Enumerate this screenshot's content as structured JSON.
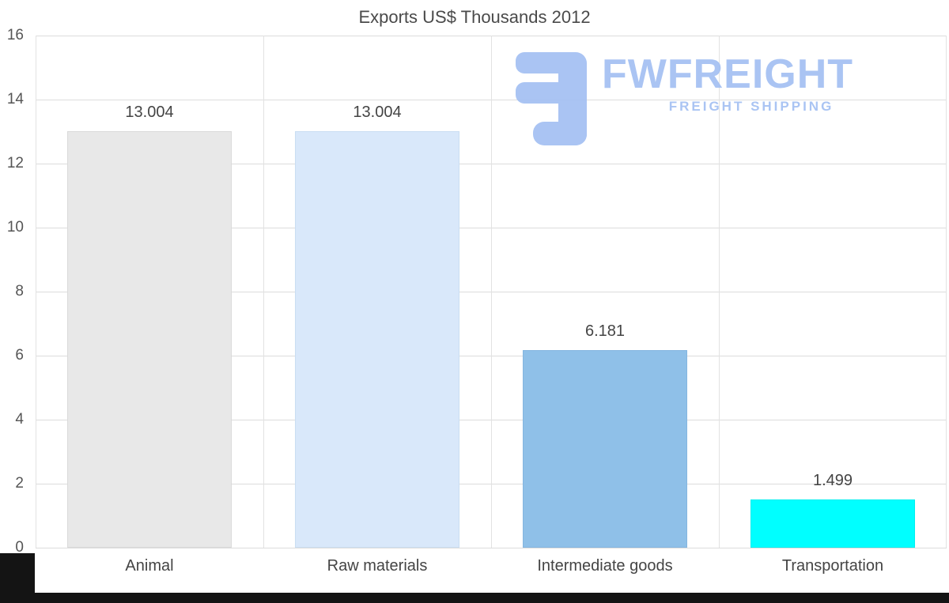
{
  "chart_data": {
    "type": "bar",
    "title": "Exports US$ Thousands 2012",
    "categories": [
      "Animal",
      "Raw materials",
      "Intermediate goods",
      "Transportation"
    ],
    "values": [
      13.004,
      13.004,
      6.181,
      1.499
    ],
    "value_labels": [
      "13.004",
      "13.004",
      "6.181",
      "1.499"
    ],
    "bar_colors": [
      "#e8e8e8",
      "#d9e8fa",
      "#8fc0e8",
      "#00ffff"
    ],
    "bar_border_colors": [
      "#dadada",
      "#cadef2",
      "#85b6e0",
      "#00efef"
    ],
    "ylim": [
      0,
      16
    ],
    "yticks": [
      0,
      2,
      4,
      6,
      8,
      10,
      12,
      14,
      16
    ],
    "xlabel": "",
    "ylabel": "",
    "grid": true,
    "legend": false
  },
  "watermark": {
    "brand": "FWFREIGHT",
    "tagline": "FREIGHT SHIPPING",
    "color": "#a3c0f2"
  }
}
